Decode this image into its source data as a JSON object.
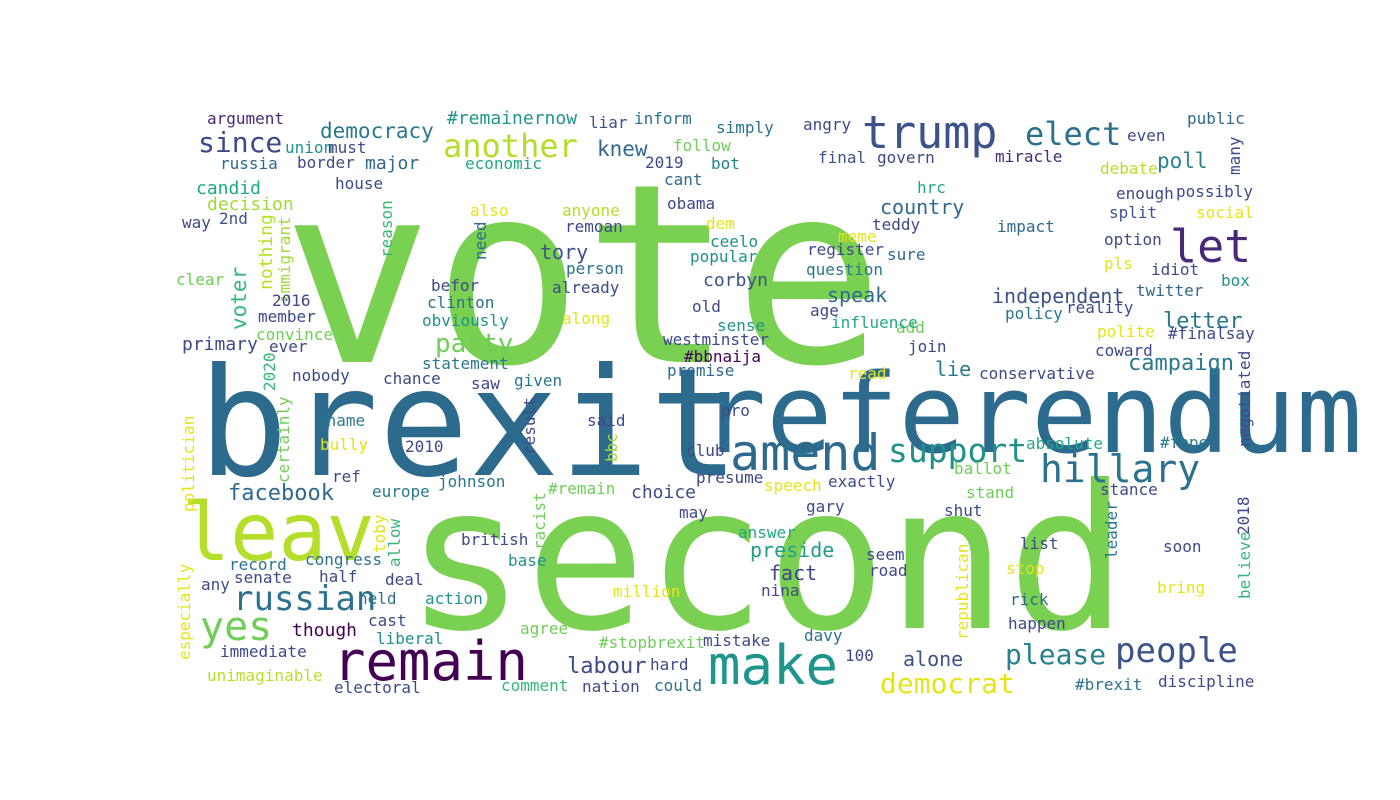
{
  "words": [
    {
      "text": "vote",
      "color": "#7ad151"
    },
    {
      "text": "second",
      "color": "#7ad151"
    },
    {
      "text": "brexit",
      "color": "#2c6a8e"
    },
    {
      "text": "referendum",
      "color": "#2c6a8e"
    },
    {
      "text": "leav",
      "color": "#b5de2b"
    },
    {
      "text": "make",
      "color": "#1f968b"
    },
    {
      "text": "remain",
      "color": "#440154"
    },
    {
      "text": "trump",
      "color": "#3b528b"
    },
    {
      "text": "amend",
      "color": "#2c6a8e"
    },
    {
      "text": "let",
      "color": "#482878"
    },
    {
      "text": "hillary",
      "color": "#2c728e"
    },
    {
      "text": "yes",
      "color": "#6ece58"
    },
    {
      "text": "russian",
      "color": "#2c728e"
    },
    {
      "text": "elect",
      "color": "#2c728e"
    },
    {
      "text": "people",
      "color": "#3b528b"
    },
    {
      "text": "support",
      "color": "#21918c"
    },
    {
      "text": "another",
      "color": "#b5de2b"
    },
    {
      "text": "democrat",
      "color": "#e5e419"
    },
    {
      "text": "please",
      "color": "#26828e"
    },
    {
      "text": "since",
      "color": "#3e4989"
    },
    {
      "text": "party",
      "color": "#6ece58"
    },
    {
      "text": "facebook",
      "color": "#31688e"
    },
    {
      "text": "labour",
      "color": "#3e4989"
    },
    {
      "text": "campaign",
      "color": "#2a788e"
    },
    {
      "text": "letter",
      "color": "#2a788e"
    },
    {
      "text": "democracy",
      "color": "#2a788e"
    },
    {
      "text": "poll",
      "color": "#26828e"
    },
    {
      "text": "knew",
      "color": "#31688e"
    },
    {
      "text": "voter",
      "color": "#35b779"
    },
    {
      "text": "independent",
      "color": "#3b528b"
    },
    {
      "text": "tory",
      "color": "#3b528b"
    },
    {
      "text": "country",
      "color": "#31688e"
    },
    {
      "text": "preside",
      "color": "#1f9e89"
    },
    {
      "text": "fact",
      "color": "#404688"
    },
    {
      "text": "alone",
      "color": "#3b528b"
    },
    {
      "text": "lie",
      "color": "#2a788e"
    },
    {
      "text": "speak",
      "color": "#31688e"
    },
    {
      "text": "candid",
      "color": "#22a884"
    },
    {
      "text": "nothing",
      "color": "#b5de2b"
    },
    {
      "text": "corbyn",
      "color": "#3b528b"
    },
    {
      "text": "choice",
      "color": "#3e4989"
    },
    {
      "text": "major",
      "color": "#31688e"
    },
    {
      "text": "though",
      "color": "#440154"
    },
    {
      "text": "primary",
      "color": "#3e4989"
    },
    {
      "text": "decision",
      "color": "#a0da39"
    },
    {
      "text": "#remainernow",
      "color": "#1f968b"
    },
    {
      "text": "argument",
      "color": "#482878"
    },
    {
      "text": "union",
      "color": "#21918c"
    },
    {
      "text": "must",
      "color": "#3e4989"
    },
    {
      "text": "russia",
      "color": "#31688e"
    },
    {
      "text": "border",
      "color": "#3e4989"
    },
    {
      "text": "liar",
      "color": "#3b528b"
    },
    {
      "text": "inform",
      "color": "#2c728e"
    },
    {
      "text": "simply",
      "color": "#2c728e"
    },
    {
      "text": "angry",
      "color": "#3e4989"
    },
    {
      "text": "public",
      "color": "#31688e"
    },
    {
      "text": "even",
      "color": "#3e4989"
    },
    {
      "text": "many",
      "color": "#3e4989"
    },
    {
      "text": "economic",
      "color": "#22a884"
    },
    {
      "text": "2019",
      "color": "#3e4989"
    },
    {
      "text": "bot",
      "color": "#26828e"
    },
    {
      "text": "follow",
      "color": "#6ece58"
    },
    {
      "text": "final",
      "color": "#3b528b"
    },
    {
      "text": "govern",
      "color": "#3e4989"
    },
    {
      "text": "miracle",
      "color": "#482878"
    },
    {
      "text": "debate",
      "color": "#b5de2b"
    },
    {
      "text": "house",
      "color": "#3e4989"
    },
    {
      "text": "cant",
      "color": "#31688e"
    },
    {
      "text": "obama",
      "color": "#3e4989"
    },
    {
      "text": "hrc",
      "color": "#22a884"
    },
    {
      "text": "enough",
      "color": "#3e4989"
    },
    {
      "text": "possibly",
      "color": "#3e4989"
    },
    {
      "text": "way",
      "color": "#3e4989"
    },
    {
      "text": "2nd",
      "color": "#3b528b"
    },
    {
      "text": "immigrant",
      "color": "#a0da39"
    },
    {
      "text": "reason",
      "color": "#35b779"
    },
    {
      "text": "also",
      "color": "#e5e419"
    },
    {
      "text": "anyone",
      "color": "#b5de2b"
    },
    {
      "text": "remoan",
      "color": "#3e4989"
    },
    {
      "text": "dem",
      "color": "#e5e419"
    },
    {
      "text": "teddy",
      "color": "#3e4989"
    },
    {
      "text": "meme",
      "color": "#e5e419"
    },
    {
      "text": "impact",
      "color": "#31688e"
    },
    {
      "text": "split",
      "color": "#3b528b"
    },
    {
      "text": "social",
      "color": "#e5e419"
    },
    {
      "text": "need",
      "color": "#31688e"
    },
    {
      "text": "ceelo",
      "color": "#21918c"
    },
    {
      "text": "register",
      "color": "#3e4989"
    },
    {
      "text": "sure",
      "color": "#31688e"
    },
    {
      "text": "option",
      "color": "#3e4989"
    },
    {
      "text": "clear",
      "color": "#6ece58"
    },
    {
      "text": "person",
      "color": "#2c728e"
    },
    {
      "text": "popular",
      "color": "#21918c"
    },
    {
      "text": "question",
      "color": "#2a788e"
    },
    {
      "text": "pls",
      "color": "#e5e419"
    },
    {
      "text": "idiot",
      "color": "#3e4989"
    },
    {
      "text": "box",
      "color": "#21918c"
    },
    {
      "text": "befor",
      "color": "#3e4989"
    },
    {
      "text": "already",
      "color": "#3e4989"
    },
    {
      "text": "twitter",
      "color": "#31688e"
    },
    {
      "text": "2016",
      "color": "#3e4989"
    },
    {
      "text": "clinton",
      "color": "#2c728e"
    },
    {
      "text": "old",
      "color": "#3e4989"
    },
    {
      "text": "member",
      "color": "#3e4989"
    },
    {
      "text": "obviously",
      "color": "#21918c"
    },
    {
      "text": "age",
      "color": "#3e4989"
    },
    {
      "text": "add",
      "color": "#6ece58"
    },
    {
      "text": "policy",
      "color": "#2a788e"
    },
    {
      "text": "reality",
      "color": "#3e4989"
    },
    {
      "text": "convince",
      "color": "#6ece58"
    },
    {
      "text": "along",
      "color": "#e5e419"
    },
    {
      "text": "sense",
      "color": "#21918c"
    },
    {
      "text": "influence",
      "color": "#22a884"
    },
    {
      "text": "ever",
      "color": "#3e4989"
    },
    {
      "text": "westminster",
      "color": "#3e4989"
    },
    {
      "text": "polite",
      "color": "#e5e419"
    },
    {
      "text": "#finalsay",
      "color": "#3e4989"
    },
    {
      "text": "2020",
      "color": "#35b779"
    },
    {
      "text": "join",
      "color": "#3e4989"
    },
    {
      "text": "coward",
      "color": "#3e4989"
    },
    {
      "text": "#bbnaija",
      "color": "#440154"
    },
    {
      "text": "statement",
      "color": "#2a788e"
    },
    {
      "text": "negotiated",
      "color": "#3e4989"
    },
    {
      "text": "nobody",
      "color": "#3e4989"
    },
    {
      "text": "chance",
      "color": "#3e4989"
    },
    {
      "text": "promise",
      "color": "#31688e"
    },
    {
      "text": "conservative",
      "color": "#3e4989"
    },
    {
      "text": "politician",
      "color": "#e5e419"
    },
    {
      "text": "saw",
      "color": "#3e4989"
    },
    {
      "text": "given",
      "color": "#2a788e"
    },
    {
      "text": "read",
      "color": "#e5e419"
    },
    {
      "text": "certainly",
      "color": "#6ece58"
    },
    {
      "text": "result",
      "color": "#3e4989"
    },
    {
      "text": "pro",
      "color": "#3e4989"
    },
    {
      "text": "shame",
      "color": "#2a788e"
    },
    {
      "text": "said",
      "color": "#3e4989"
    },
    {
      "text": "bbc",
      "color": "#a0da39"
    },
    {
      "text": "absolute",
      "color": "#22a884"
    },
    {
      "text": "#fbpe",
      "color": "#2a788e"
    },
    {
      "text": "bully",
      "color": "#e5e419"
    },
    {
      "text": "2010",
      "color": "#3e4989"
    },
    {
      "text": "club",
      "color": "#3e4989"
    },
    {
      "text": "ballot",
      "color": "#6ece58"
    },
    {
      "text": "ref",
      "color": "#3e4989"
    },
    {
      "text": "johnson",
      "color": "#2a788e"
    },
    {
      "text": "presume",
      "color": "#3e4989"
    },
    {
      "text": "exactly",
      "color": "#3e4989"
    },
    {
      "text": "europe",
      "color": "#2a788e"
    },
    {
      "text": "#remain",
      "color": "#6ece58"
    },
    {
      "text": "speech",
      "color": "#e5e419"
    },
    {
      "text": "stance",
      "color": "#3e4989"
    },
    {
      "text": "stand",
      "color": "#6ece58"
    },
    {
      "text": "racist",
      "color": "#6ece58"
    },
    {
      "text": "gary",
      "color": "#3e4989"
    },
    {
      "text": "toby",
      "color": "#e5e419"
    },
    {
      "text": "may",
      "color": "#3e4989"
    },
    {
      "text": "shut",
      "color": "#3e4989"
    },
    {
      "text": "leader",
      "color": "#2a788e"
    },
    {
      "text": "2018",
      "color": "#3e4989"
    },
    {
      "text": "allow",
      "color": "#35b779"
    },
    {
      "text": "british",
      "color": "#3e4989"
    },
    {
      "text": "answer",
      "color": "#22a884"
    },
    {
      "text": "list",
      "color": "#3e4989"
    },
    {
      "text": "soon",
      "color": "#3e4989"
    },
    {
      "text": "believe",
      "color": "#35b779"
    },
    {
      "text": "congress",
      "color": "#2c728e"
    },
    {
      "text": "base",
      "color": "#21918c"
    },
    {
      "text": "seem",
      "color": "#3e4989"
    },
    {
      "text": "record",
      "color": "#2c728e"
    },
    {
      "text": "senate",
      "color": "#3e4989"
    },
    {
      "text": "half",
      "color": "#3e4989"
    },
    {
      "text": "deal",
      "color": "#3e4989"
    },
    {
      "text": "road",
      "color": "#3e4989"
    },
    {
      "text": "republican",
      "color": "#e5e419"
    },
    {
      "text": "stop",
      "color": "#e5e419"
    },
    {
      "text": "any",
      "color": "#3e4989"
    },
    {
      "text": "nina",
      "color": "#3e4989"
    },
    {
      "text": "million",
      "color": "#e5e419"
    },
    {
      "text": "bring",
      "color": "#e5e419"
    },
    {
      "text": "especially",
      "color": "#e5e419"
    },
    {
      "text": "held",
      "color": "#2c728e"
    },
    {
      "text": "action",
      "color": "#21918c"
    },
    {
      "text": "rick",
      "color": "#31688e"
    },
    {
      "text": "cast",
      "color": "#3e4989"
    },
    {
      "text": "liberal",
      "color": "#21918c"
    },
    {
      "text": "agree",
      "color": "#6ece58"
    },
    {
      "text": "#stopbrexit",
      "color": "#6ece58"
    },
    {
      "text": "mistake",
      "color": "#3e4989"
    },
    {
      "text": "davy",
      "color": "#2c728e"
    },
    {
      "text": "happen",
      "color": "#3e4989"
    },
    {
      "text": "immediate",
      "color": "#3e4989"
    },
    {
      "text": "100",
      "color": "#3e4989"
    },
    {
      "text": "hard",
      "color": "#3e4989"
    },
    {
      "text": "unimaginable",
      "color": "#b5de2b"
    },
    {
      "text": "electoral",
      "color": "#3e4989"
    },
    {
      "text": "comment",
      "color": "#35b779"
    },
    {
      "text": "nation",
      "color": "#3e4989"
    },
    {
      "text": "could",
      "color": "#2c728e"
    },
    {
      "text": "#brexit",
      "color": "#2c728e"
    },
    {
      "text": "discipline",
      "color": "#3e4989"
    }
  ]
}
